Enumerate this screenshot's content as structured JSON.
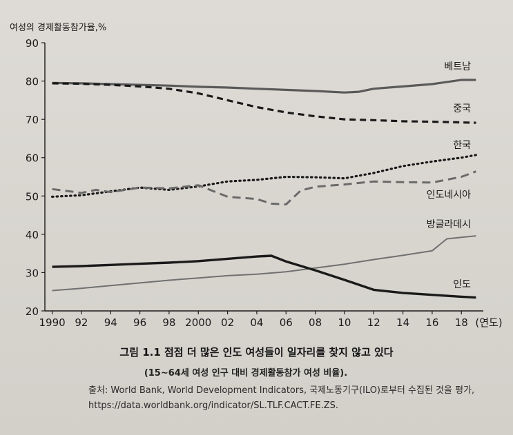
{
  "chart_data": {
    "type": "line",
    "ylabel": "여성의 경제활동참가율,%",
    "xlabel": "(연도)",
    "ylim": [
      20,
      90
    ],
    "yticks": [
      20,
      30,
      40,
      50,
      60,
      70,
      80,
      90
    ],
    "xlim": [
      1990,
      2019
    ],
    "xticks": [
      1990,
      1992,
      1994,
      1996,
      1998,
      2000,
      2002,
      2004,
      2006,
      2008,
      2010,
      2012,
      2014,
      2016,
      2018
    ],
    "xtick_labels": [
      "1990",
      "92",
      "94",
      "96",
      "98",
      "2000",
      "02",
      "04",
      "06",
      "08",
      "10",
      "12",
      "14",
      "16",
      "18"
    ],
    "grid": false,
    "series": [
      {
        "name": "베트남",
        "style": "solid-thick-gray",
        "color": "#5a5a5a",
        "x": [
          1990,
          1992,
          1994,
          1996,
          1998,
          2000,
          2002,
          2004,
          2006,
          2008,
          2010,
          2011,
          2012,
          2014,
          2016,
          2018,
          2019
        ],
        "y": [
          79.5,
          79.4,
          79.2,
          79.0,
          78.8,
          78.5,
          78.3,
          78.0,
          77.7,
          77.4,
          77.0,
          77.2,
          78.0,
          78.6,
          79.2,
          80.3,
          80.3
        ]
      },
      {
        "name": "중국",
        "style": "dashed-thick",
        "color": "#1a1a1a",
        "x": [
          1990,
          1992,
          1994,
          1996,
          1998,
          2000,
          2002,
          2004,
          2006,
          2008,
          2010,
          2012,
          2014,
          2016,
          2018,
          2019
        ],
        "y": [
          79.4,
          79.3,
          79.0,
          78.6,
          78.0,
          76.8,
          75.0,
          73.2,
          71.8,
          70.8,
          70.0,
          69.8,
          69.5,
          69.4,
          69.2,
          69.1
        ]
      },
      {
        "name": "한국",
        "style": "dotted",
        "color": "#1a1a1a",
        "x": [
          1990,
          1992,
          1994,
          1996,
          1998,
          2000,
          2002,
          2004,
          2006,
          2008,
          2010,
          2012,
          2014,
          2016,
          2018,
          2019
        ],
        "y": [
          49.8,
          50.2,
          51.2,
          52.2,
          51.6,
          52.5,
          53.8,
          54.2,
          55.0,
          54.9,
          54.6,
          56.0,
          57.8,
          59.0,
          60.0,
          60.7
        ]
      },
      {
        "name": "인도네시아",
        "style": "dashed-gray",
        "color": "#6a6a6a",
        "x": [
          1990,
          1992,
          1993,
          1994,
          1996,
          1998,
          2000,
          2002,
          2004,
          2005,
          2006,
          2007,
          2008,
          2010,
          2012,
          2014,
          2016,
          2018,
          2019
        ],
        "y": [
          51.8,
          50.8,
          51.6,
          51.0,
          52.2,
          52.0,
          52.8,
          49.8,
          49.2,
          48.0,
          47.8,
          51.4,
          52.4,
          53.0,
          53.8,
          53.6,
          53.5,
          55.0,
          56.4
        ]
      },
      {
        "name": "방글라데시",
        "style": "solid-gray",
        "color": "#707070",
        "x": [
          1990,
          1992,
          1994,
          1996,
          1998,
          2000,
          2002,
          2004,
          2006,
          2008,
          2010,
          2012,
          2014,
          2016,
          2017,
          2018,
          2019
        ],
        "y": [
          25.3,
          25.9,
          26.6,
          27.3,
          28.0,
          28.6,
          29.2,
          29.6,
          30.2,
          31.2,
          32.2,
          33.4,
          34.5,
          35.7,
          38.8,
          39.2,
          39.6
        ]
      },
      {
        "name": "인도",
        "style": "solid-thick-black",
        "color": "#1a1a1a",
        "x": [
          1990,
          1992,
          1994,
          1996,
          1998,
          2000,
          2002,
          2004,
          2005,
          2006,
          2008,
          2010,
          2012,
          2014,
          2016,
          2018,
          2019
        ],
        "y": [
          31.5,
          31.7,
          32.0,
          32.3,
          32.6,
          33.0,
          33.6,
          34.2,
          34.4,
          32.9,
          30.6,
          28.1,
          25.5,
          24.7,
          24.2,
          23.7,
          23.5
        ]
      }
    ]
  },
  "caption": {
    "title": "그림 1.1 점점 더 많은 인도 여성들이 일자리를 찾지 않고 있다",
    "subtitle": "(15~64세 여성 인구 대비 경제활동참가 여성 비율).",
    "source_line1": "출처: World Bank, World Development Indicators, 국제노동기구(ILO)로부터 수집된 것을 평가,",
    "source_line2": "https://data.worldbank.org/indicator/SL.TLF.CACT.FE.ZS."
  }
}
